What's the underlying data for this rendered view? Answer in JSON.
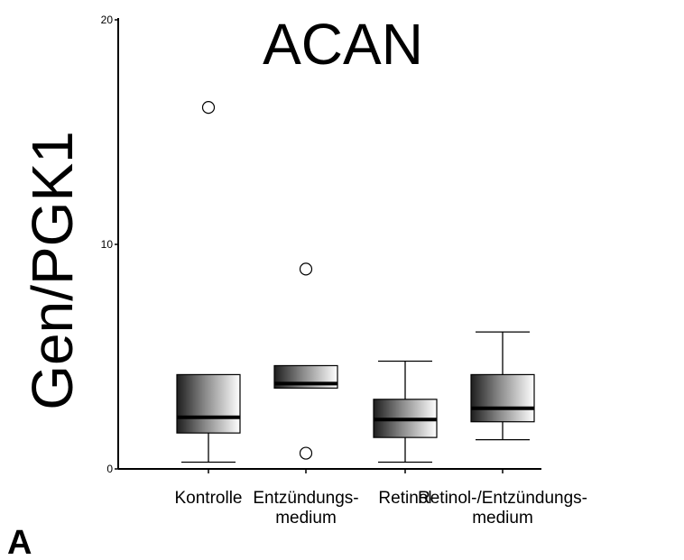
{
  "panel_label": "A",
  "chart_data": {
    "type": "box",
    "title": "ACAN",
    "xlabel": "",
    "ylabel": "Gen/PGK1",
    "ylim": [
      0,
      20
    ],
    "yticks": [
      "0",
      "10",
      "20"
    ],
    "grid": false,
    "legend": "none",
    "categories": [
      [
        "Kontrolle"
      ],
      [
        "Entzündungs-",
        "medium"
      ],
      [
        "Retinol"
      ],
      [
        "Retinol-/Entzündungs-",
        "medium"
      ]
    ],
    "boxes": [
      {
        "whisker_low": 0.3,
        "q1": 1.6,
        "median": 2.3,
        "q3": 4.2,
        "whisker_high": 4.2,
        "outliers": [
          16.1
        ]
      },
      {
        "whisker_low": 3.6,
        "q1": 3.6,
        "median": 3.8,
        "q3": 4.6,
        "whisker_high": 4.6,
        "outliers": [
          8.9,
          0.7
        ]
      },
      {
        "whisker_low": 0.3,
        "q1": 1.4,
        "median": 2.2,
        "q3": 3.1,
        "whisker_high": 4.8,
        "outliers": []
      },
      {
        "whisker_low": 1.3,
        "q1": 2.1,
        "median": 2.7,
        "q3": 4.2,
        "whisker_high": 6.1,
        "outliers": []
      }
    ]
  }
}
